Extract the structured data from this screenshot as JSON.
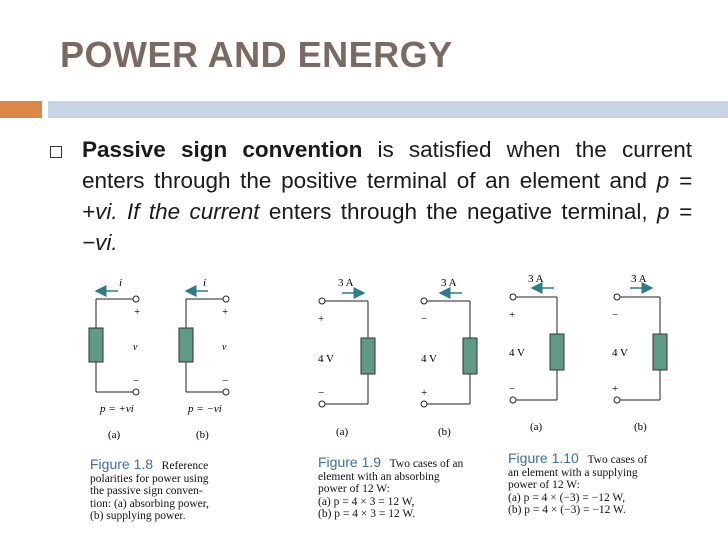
{
  "slide": {
    "title": "POWER AND ENERGY",
    "para_bold": "Passive sign convention",
    "para_t1": " is satisfied when the current enters through the positive terminal of an element and ",
    "para_i1": "p = +vi. If the current",
    "para_t2": " enters through the negative terminal, ",
    "para_i2": "p = −vi."
  },
  "fig18": {
    "cur_a": "i",
    "cur_b": "i",
    "plus": "+",
    "minus": "−",
    "v": "v",
    "p_a": "p = +vi",
    "p_b": "p = −vi",
    "sub_a": "(a)",
    "sub_b": "(b)",
    "cap_label": "Figure 1.8",
    "cap_1": "Reference",
    "cap_2": "polarities for power using",
    "cap_3": "the passive sign conven-",
    "cap_4": "tion: (a) absorbing power,",
    "cap_5": "(b) supplying power."
  },
  "fig19": {
    "cur": "3 A",
    "volt": "4 V",
    "plus": "+",
    "minus": "−",
    "sub_a": "(a)",
    "sub_b": "(b)",
    "cap_label": "Figure 1.9",
    "cap_1": "Two cases of an",
    "cap_2": "element with an absorbing",
    "cap_3": "power of 12 W:",
    "cap_4": "(a) p = 4 × 3 = 12 W,",
    "cap_5": "(b) p = 4 × 3 = 12 W."
  },
  "fig110": {
    "cur": "3 A",
    "volt": "4 V",
    "plus": "+",
    "minus": "−",
    "sub_a": "(a)",
    "sub_b": "(b)",
    "cap_label": "Figure 1.10",
    "cap_1": "Two cases of",
    "cap_2": "an element with a supplying",
    "cap_3": "power of 12 W:",
    "cap_4": "(a) p = 4 × (−3) = −12 W,",
    "cap_5": "(b) p = 4 × (−3) = −12 W."
  },
  "colors": {
    "title": "#7a6a5f",
    "accent_orange": "#d9884a",
    "accent_blue": "#c7d5e6",
    "element_green": "#5f9a86",
    "caption_blue": "#3a6fa8"
  }
}
